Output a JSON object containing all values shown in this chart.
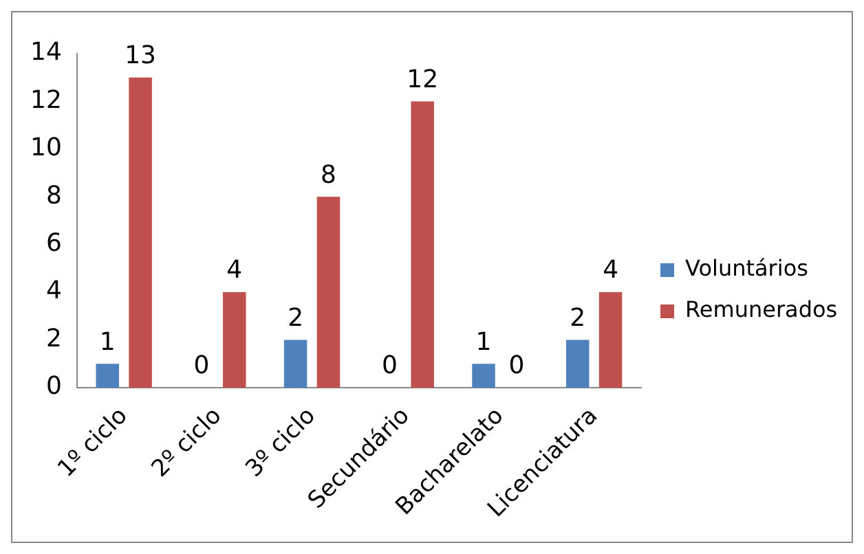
{
  "chart_data": {
    "type": "bar",
    "categories": [
      "1º ciclo",
      "2º ciclo",
      "3º ciclo",
      "Secundário",
      "Bacharelato",
      "Licenciatura"
    ],
    "series": [
      {
        "name": "Voluntários",
        "color": "#4f81bd",
        "values": [
          1,
          0,
          2,
          0,
          1,
          2
        ]
      },
      {
        "name": "Remunerados",
        "color": "#c0504d",
        "values": [
          13,
          4,
          8,
          12,
          0,
          4
        ]
      }
    ],
    "ylim": [
      0,
      14
    ],
    "yticks": [
      0,
      2,
      4,
      6,
      8,
      10,
      12,
      14
    ],
    "grid": false,
    "legend": "right",
    "data_labels": true
  }
}
